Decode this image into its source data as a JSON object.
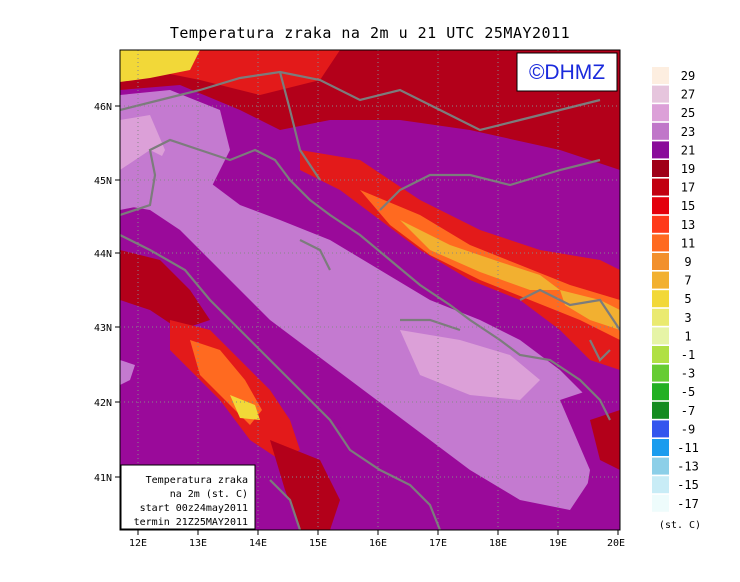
{
  "title": "Temperatura zraka na 2m u 21 UTC 25MAY2011",
  "logo_text": "©DHMZ",
  "info_box": {
    "line1": "Temperatura zraka",
    "line2": "na 2m (st. C)",
    "line3": "start 00z24may2011",
    "line4": "termin 21Z25MAY2011"
  },
  "axes": {
    "lon_labels": [
      "12E",
      "13E",
      "14E",
      "15E",
      "16E",
      "17E",
      "18E",
      "19E",
      "20E"
    ],
    "lat_labels": [
      "41N",
      "42N",
      "43N",
      "44N",
      "45N",
      "46N"
    ]
  },
  "legend": {
    "unit": "(st. C)",
    "levels": [
      "29",
      "27",
      "25",
      "23",
      "21",
      "19",
      "17",
      "15",
      "13",
      "11",
      "9",
      "7",
      "5",
      "3",
      "1",
      "-1",
      "-3",
      "-5",
      "-7",
      "-9",
      "-11",
      "-13",
      "-15",
      "-17"
    ],
    "colors": [
      "#fdeee0",
      "#e6c5dd",
      "#dca0d8",
      "#c076c9",
      "#8a0c9a",
      "#a00018",
      "#c20010",
      "#e4000c",
      "#ff3a1a",
      "#ff6a20",
      "#f2902c",
      "#f2b030",
      "#f2d838",
      "#eaea70",
      "#e6f4a6",
      "#b0e044",
      "#66cc33",
      "#22b022",
      "#148c20",
      "#3355ee",
      "#1a9cee",
      "#8ccfe8",
      "#c8ecf6",
      "#eefcfc"
    ]
  },
  "colors": {
    "sea": "#c47ad0",
    "land_warm": "#a30b9a",
    "hot": "#e3141c",
    "coast": "#7c7c7c"
  }
}
